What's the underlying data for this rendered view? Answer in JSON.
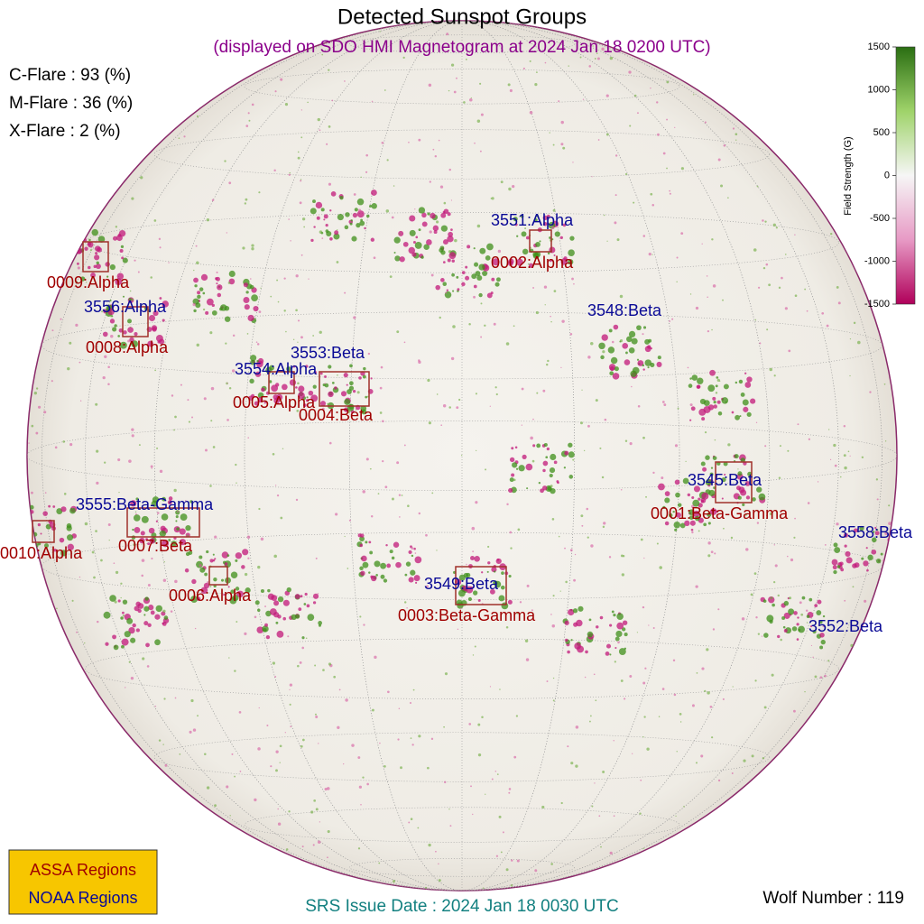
{
  "title": "Detected Sunspot Groups",
  "subtitle": "(displayed on SDO HMI Magnetogram at 2024 Jan 18 0200 UTC)",
  "flare_probabilities": [
    "C-Flare : 93 (%)",
    "M-Flare : 36 (%)",
    "X-Flare :  2 (%)"
  ],
  "assa_regions": [
    "0009:Alpha",
    "0008:Alpha",
    "0005:Alpha",
    "0004:Beta",
    "0002:Alpha",
    "0001:Beta-Gamma",
    "0007:Beta",
    "0010:Alpha",
    "0006:Alpha",
    "0003:Beta-Gamma"
  ],
  "noaa_regions": [
    "3551:Alpha",
    "3556:Alpha",
    "3548:Beta",
    "3553:Beta",
    "3554:Alpha",
    "3545:Beta",
    "3555:Beta-Gamma",
    "3558:Beta",
    "3549:Beta",
    "3552:Beta"
  ],
  "colorbar": {
    "label": "Field Strength (G)",
    "lim": [
      -1500,
      1500
    ],
    "ticks": [
      1500,
      1000,
      500,
      0,
      -500,
      -1000,
      -1500
    ]
  },
  "legend": [
    "ASSA Regions",
    "NOAA Regions"
  ],
  "footer": "SRS Issue Date : 2024 Jan 18 0030 UTC",
  "wolf_number": "Wolf Number : 119"
}
